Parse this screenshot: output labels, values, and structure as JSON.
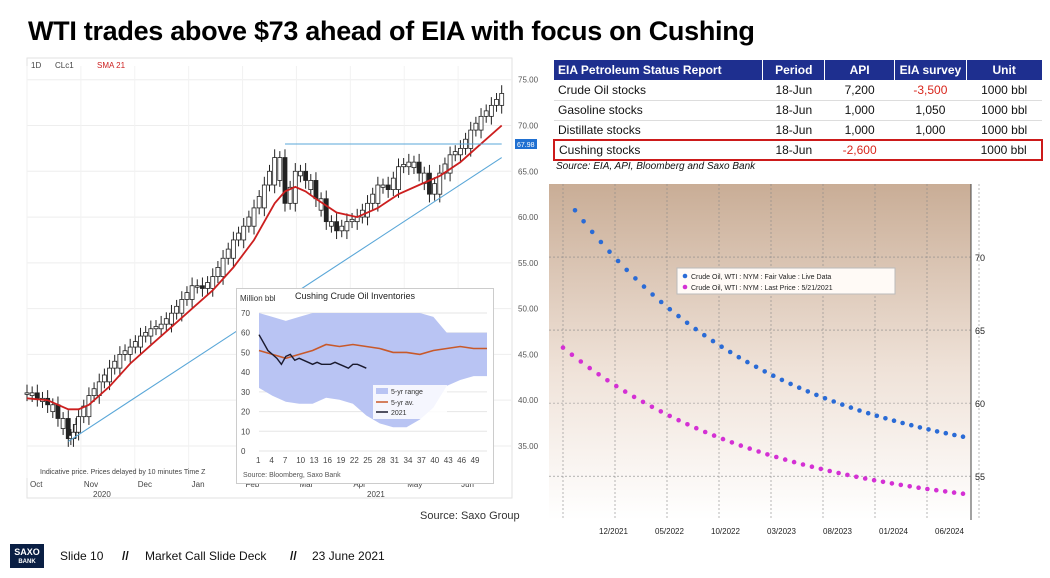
{
  "title": "WTI trades above $73 ahead of EIA with focus on Cushing",
  "footer": {
    "logo_top": "SAXO",
    "logo_bottom": "BANK",
    "slide": "Slide 10",
    "sep": "//",
    "deck": "Market Call Slide Deck",
    "date": "23 June 2021"
  },
  "source_bottom": "Source: Saxo Group",
  "table": {
    "headers": [
      "EIA Petroleum Status Report",
      "Period",
      "API",
      "EIA survey",
      "Unit"
    ],
    "rows": [
      {
        "name": "Crude Oil stocks",
        "period": "18-Jun",
        "api": "7,200",
        "eia": "-3,500",
        "unit": "1000 bbl",
        "highlight": false
      },
      {
        "name": "Gasoline stocks",
        "period": "18-Jun",
        "api": "1,000",
        "eia": "1,050",
        "unit": "1000 bbl",
        "highlight": false
      },
      {
        "name": "Distillate stocks",
        "period": "18-Jun",
        "api": "1,000",
        "eia": "1,000",
        "unit": "1000 bbl",
        "highlight": false
      },
      {
        "name": "Cushing stocks",
        "period": "18-Jun",
        "api": "-2,600",
        "eia": "",
        "unit": "1000 bbl",
        "highlight": true
      }
    ],
    "source": "Source: EIA, API, Bloomberg and Saxo Bank",
    "negative_color": "#d8261c",
    "highlight_color": "#cc1a1a",
    "header_color": "#1e2f8f"
  },
  "chart_data": [
    {
      "type": "line",
      "id": "wti-price",
      "labels": {
        "interval": "1D",
        "symbol": "CLc1",
        "sma_label": "SMA 21"
      },
      "y_ticks": [
        "75.00",
        "70.00",
        "65.00",
        "60.00",
        "55.00",
        "50.00",
        "45.00",
        "40.00",
        "35.00"
      ],
      "ylim": [
        31.5,
        76.5
      ],
      "last_price_label": "67.98",
      "months": [
        "Oct",
        "Nov",
        "Dec",
        "Jan",
        "Feb",
        "Mar",
        "Apr",
        "May",
        "Jun"
      ],
      "years": [
        "2020",
        "2021"
      ],
      "disclaimer": "Indicative price. Prices delayed by 10 minutes    Time Z",
      "series": [
        {
          "name": "price",
          "color": "#222222",
          "x": [
            0,
            4,
            8,
            12,
            16,
            18,
            20,
            24,
            28,
            32,
            36,
            40,
            44,
            48,
            52,
            56,
            60,
            64,
            68,
            72,
            76,
            80,
            84,
            88,
            92,
            96,
            100,
            104,
            108,
            112,
            116,
            120,
            124,
            128,
            132,
            136,
            140,
            144,
            148,
            152,
            156,
            160,
            164,
            168,
            172,
            176,
            180,
            184
          ],
          "values": [
            40.8,
            40.2,
            39.5,
            38.0,
            35.8,
            36.5,
            38.2,
            40.5,
            42.0,
            43.5,
            45.0,
            45.8,
            47.0,
            47.8,
            48.3,
            49.5,
            51.0,
            52.5,
            52.2,
            53.5,
            55.5,
            57.5,
            59.0,
            61.0,
            63.5,
            66.5,
            61.5,
            65.0,
            64.0,
            62.0,
            59.5,
            58.5,
            59.5,
            60.0,
            61.5,
            63.5,
            63.0,
            65.5,
            66.0,
            64.8,
            62.5,
            64.8,
            66.8,
            67.5,
            69.5,
            71.0,
            72.2,
            73.5
          ]
        },
        {
          "name": "SMA 21",
          "color": "#cc1f1f",
          "x": [
            0,
            8,
            16,
            20,
            24,
            32,
            40,
            48,
            56,
            64,
            72,
            80,
            88,
            96,
            100,
            104,
            108,
            112,
            120,
            128,
            136,
            144,
            152,
            160,
            168,
            176,
            184
          ],
          "values": [
            40.2,
            40.0,
            39.0,
            39.0,
            39.5,
            41.5,
            44.0,
            46.0,
            48.0,
            50.0,
            52.0,
            54.5,
            57.5,
            61.5,
            62.8,
            63.3,
            62.8,
            62.0,
            60.5,
            60.0,
            61.0,
            62.5,
            63.5,
            64.5,
            66.0,
            68.0,
            70.0
          ]
        },
        {
          "name": "support-trendline",
          "color": "#5aa7d8",
          "x": [
            16,
            184
          ],
          "values": [
            35.5,
            66.5
          ]
        },
        {
          "name": "resistance",
          "color": "#5aa7d8",
          "x": [
            100,
            184
          ],
          "values": [
            67.98,
            67.98
          ]
        }
      ],
      "xlim": [
        0,
        188
      ]
    },
    {
      "type": "area",
      "id": "cushing-inventories",
      "title": "Cushing Crude Oil Inventories",
      "ylabel": "Million bbl",
      "ylim": [
        0,
        70
      ],
      "y_ticks": [
        0,
        10,
        20,
        30,
        40,
        50,
        60,
        70
      ],
      "x_ticks": [
        1,
        4,
        7,
        10,
        13,
        16,
        19,
        22,
        25,
        28,
        31,
        34,
        37,
        40,
        43,
        46,
        49
      ],
      "xlim": [
        1,
        52
      ],
      "source": "Source: Bloomberg, Saxo Bank",
      "legend": [
        "5-yr range",
        "5-yr av.",
        "2021"
      ],
      "band_color": "#b9c4f3",
      "avg_color": "#c8592a",
      "current_color": "#1a1a2e",
      "series": [
        {
          "name": "5-yr range",
          "x": [
            1,
            4,
            7,
            10,
            13,
            16,
            19,
            22,
            25,
            28,
            31,
            34,
            37,
            40,
            43,
            46,
            49,
            52
          ],
          "low": [
            32,
            28,
            25,
            24,
            24,
            27,
            26,
            24,
            18,
            14,
            12,
            12,
            16,
            22,
            33,
            36,
            38,
            38
          ],
          "high": [
            70,
            68,
            66,
            68,
            70,
            70,
            70,
            70,
            70,
            70,
            70,
            70,
            70,
            68,
            60,
            60,
            60,
            60
          ]
        },
        {
          "name": "5-yr av.",
          "x": [
            1,
            4,
            7,
            10,
            13,
            16,
            19,
            22,
            25,
            28,
            31,
            34,
            37,
            40,
            43,
            46,
            49,
            52
          ],
          "values": [
            51,
            49,
            47,
            49,
            51,
            54,
            53,
            54,
            53,
            52,
            50,
            50,
            49,
            51,
            52,
            53,
            52,
            52
          ]
        },
        {
          "name": "2021",
          "x": [
            1,
            2,
            3,
            4,
            5,
            6,
            7,
            8,
            9,
            10,
            11,
            12,
            13,
            14,
            15,
            16,
            17,
            18,
            19,
            20,
            21,
            22,
            23,
            24,
            25
          ],
          "values": [
            59,
            55,
            51,
            49,
            47,
            44,
            48,
            49,
            46,
            47,
            46,
            45,
            44,
            45,
            44,
            44,
            44,
            45,
            44,
            43,
            42,
            44,
            44,
            43,
            42
          ]
        }
      ]
    },
    {
      "type": "scatter",
      "id": "forward-curve",
      "legend": [
        "Crude Oil, WTI : NYM : Fair Value : Live Data",
        "Crude Oil, WTI : NYM : Last Price : 5/21/2021"
      ],
      "y_ticks": [
        55,
        60,
        65,
        70
      ],
      "ylim": [
        52,
        75
      ],
      "x_ticks": [
        "12/2021",
        "05/2022",
        "10/2022",
        "03/2023",
        "08/2023",
        "01/2024",
        "06/2024"
      ],
      "series": [
        {
          "name": "Crude Oil, WTI : NYM : Fair Value : Live Data",
          "color": "#2a6bd6",
          "start": 73.2,
          "end": 57.7,
          "count": 46
        },
        {
          "name": "Crude Oil, WTI : NYM : Last Price : 5/21/2021",
          "color": "#d430d4",
          "start": 63.8,
          "end": 53.8,
          "count": 46
        }
      ]
    }
  ]
}
